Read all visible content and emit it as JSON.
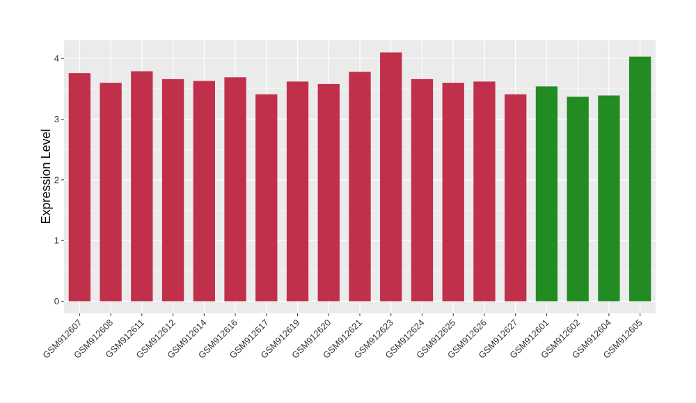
{
  "chart_data": {
    "type": "bar",
    "title": "",
    "xlabel": "",
    "ylabel": "Expression Level",
    "ylim": [
      -0.2,
      4.3
    ],
    "yticks": [
      0,
      1,
      2,
      3,
      4
    ],
    "grid": true,
    "categories": [
      "GSM912607",
      "GSM912608",
      "GSM912611",
      "GSM912612",
      "GSM912614",
      "GSM912616",
      "GSM912617",
      "GSM912619",
      "GSM912620",
      "GSM912621",
      "GSM912623",
      "GSM912624",
      "GSM912625",
      "GSM912626",
      "GSM912627",
      "GSM912601",
      "GSM912602",
      "GSM912604",
      "GSM912605"
    ],
    "values": [
      3.76,
      3.6,
      3.79,
      3.66,
      3.63,
      3.69,
      3.41,
      3.62,
      3.58,
      3.78,
      4.1,
      3.66,
      3.6,
      3.62,
      3.41,
      3.54,
      3.37,
      3.39,
      4.03
    ],
    "bar_colors": [
      "#c0304a",
      "#c0304a",
      "#c0304a",
      "#c0304a",
      "#c0304a",
      "#c0304a",
      "#c0304a",
      "#c0304a",
      "#c0304a",
      "#c0304a",
      "#c0304a",
      "#c0304a",
      "#c0304a",
      "#c0304a",
      "#c0304a",
      "#228b22",
      "#228b22",
      "#228b22",
      "#228b22"
    ],
    "panel_background": "#ebebeb",
    "grid_color": "#ffffff"
  }
}
